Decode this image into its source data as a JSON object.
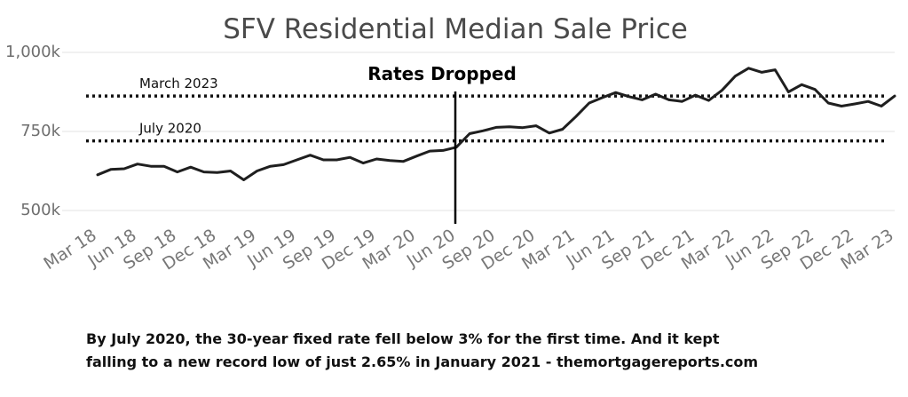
{
  "chart_data": {
    "type": "line",
    "title": "SFV Residential Median Sale Price",
    "xlabel": "",
    "ylabel": "",
    "ylim": [
      500,
      1000
    ],
    "y_ticks": [
      {
        "value": 500,
        "label": "500k"
      },
      {
        "value": 750,
        "label": "750k"
      },
      {
        "value": 1000,
        "label": "1,000k"
      }
    ],
    "x_tick_labels": [
      "Mar 18",
      "Jun 18",
      "Sep 18",
      "Dec 18",
      "Mar 19",
      "Jun 19",
      "Sep 19",
      "Dec 19",
      "Mar 20",
      "Jun 20",
      "Sep 20",
      "Dec 20",
      "Mar 21",
      "Jun 21",
      "Sep 21",
      "Dec 21",
      "Mar 22",
      "Jun 22",
      "Sep 22",
      "Dec 22",
      "Mar 23"
    ],
    "series": [
      {
        "name": "SFV Residential Median Sale Price",
        "color": "#1f1f1f",
        "values": [
          613,
          630,
          632,
          647,
          640,
          640,
          622,
          637,
          622,
          620,
          625,
          597,
          625,
          640,
          645,
          660,
          675,
          660,
          660,
          668,
          650,
          663,
          658,
          655,
          672,
          688,
          690,
          700,
          743,
          752,
          763,
          765,
          762,
          768,
          745,
          757,
          797,
          840,
          857,
          873,
          860,
          850,
          868,
          850,
          845,
          865,
          848,
          880,
          925,
          950,
          937,
          945,
          875,
          898,
          883,
          840,
          830,
          837,
          845,
          830,
          862
        ]
      }
    ],
    "reference_lines": [
      {
        "label": "March 2023",
        "value": 862,
        "style": "dotted"
      },
      {
        "label": "July 2020",
        "value": 720,
        "style": "dotted"
      }
    ],
    "annotation": {
      "text": "Rates Dropped",
      "at_index": 27
    }
  },
  "caption": {
    "line1": "By July 2020, the 30-year fixed rate fell below 3% for the first time. And it kept",
    "line2": "falling to a new record low of just 2.65% in January 2021 - themortgagereports.com"
  }
}
